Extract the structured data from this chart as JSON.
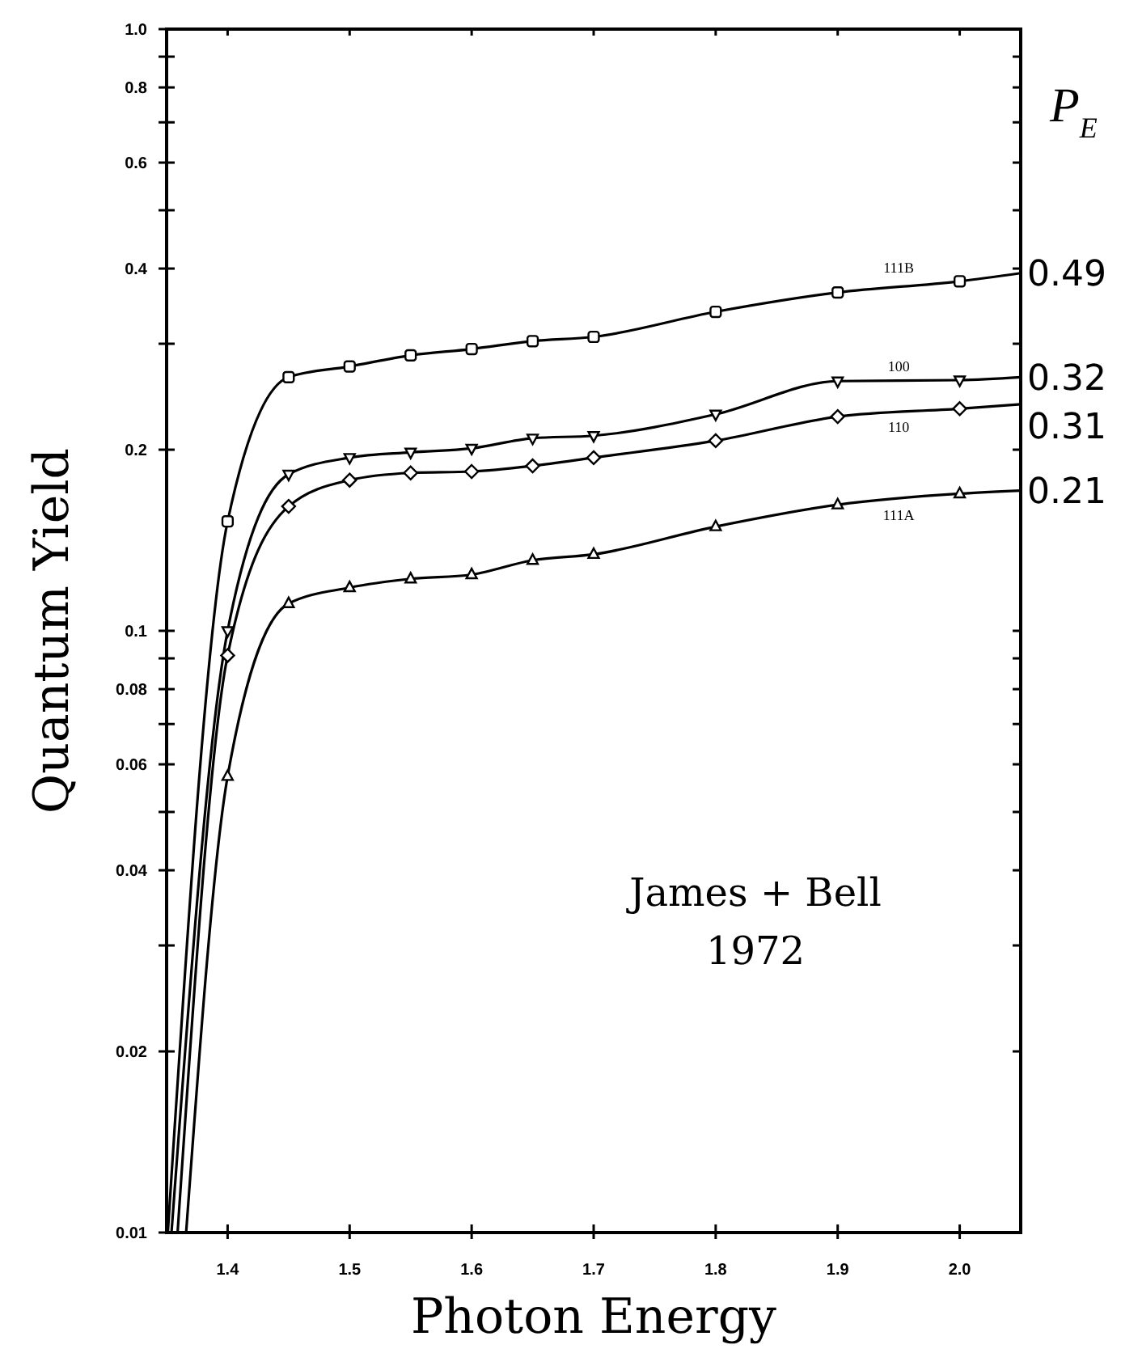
{
  "chart_data": {
    "type": "line",
    "xlabel": "Photon Energy",
    "ylabel": "Quantum Yield",
    "log": "y",
    "grid": false,
    "xlim": [
      1.35,
      2.05
    ],
    "xticks": [
      1.4,
      1.5,
      1.6,
      1.7,
      1.8,
      1.9,
      {
        "value": 2.0,
        "label": "2.0"
      }
    ],
    "ylim": [
      0.01,
      1.0
    ],
    "yticks": [
      0.01,
      0.02,
      {
        "value": 0.03,
        "label": null
      },
      0.04,
      {
        "value": 0.05,
        "label": null
      },
      0.06,
      {
        "value": 0.07,
        "label": null
      },
      0.08,
      {
        "value": 0.09,
        "label": null
      },
      0.1,
      0.2,
      {
        "value": 0.3,
        "label": null
      },
      0.4,
      {
        "value": 0.5,
        "label": null
      },
      0.6,
      {
        "value": 0.7,
        "label": null
      },
      0.8,
      {
        "value": 0.9,
        "label": null
      },
      {
        "value": 1.0,
        "label": "1.0"
      }
    ],
    "series": [
      {
        "name": "111B",
        "color": "#000000",
        "marker": "square",
        "x": [
          1.351,
          1.4,
          1.45,
          1.5,
          1.55,
          1.6,
          1.65,
          1.7,
          1.8,
          1.9,
          2.0,
          2.05
        ],
        "values": [
          0.01,
          0.152,
          0.264,
          0.275,
          0.287,
          0.294,
          0.303,
          0.308,
          0.339,
          0.365,
          0.381,
          0.393
        ]
      },
      {
        "name": "100",
        "color": "#000000",
        "marker": "triangle-down",
        "x": [
          1.354,
          1.4,
          1.45,
          1.5,
          1.55,
          1.6,
          1.65,
          1.7,
          1.8,
          1.9,
          2.0,
          2.05
        ],
        "values": [
          0.01,
          0.1,
          0.182,
          0.194,
          0.198,
          0.201,
          0.209,
          0.211,
          0.229,
          0.26,
          0.261,
          0.264
        ]
      },
      {
        "name": "110",
        "color": "#000000",
        "marker": "diamond",
        "x": [
          1.359,
          1.4,
          1.45,
          1.5,
          1.55,
          1.6,
          1.65,
          1.7,
          1.8,
          1.9,
          2.0,
          2.05
        ],
        "values": [
          0.01,
          0.091,
          0.161,
          0.178,
          0.183,
          0.184,
          0.188,
          0.194,
          0.207,
          0.227,
          0.234,
          0.238
        ]
      },
      {
        "name": "111A",
        "color": "#000000",
        "marker": "triangle",
        "x": [
          1.366,
          1.4,
          1.45,
          1.5,
          1.55,
          1.6,
          1.65,
          1.7,
          1.8,
          1.9,
          2.0,
          2.05
        ],
        "values": [
          0.01,
          0.0573,
          0.111,
          0.118,
          0.122,
          0.124,
          0.131,
          0.134,
          0.149,
          0.162,
          0.169,
          0.171
        ]
      }
    ],
    "annotations": [
      "P$_{E}$",
      "0.49",
      "0.32",
      "0.31",
      "0.21",
      "James + Bell\n1972"
    ]
  }
}
